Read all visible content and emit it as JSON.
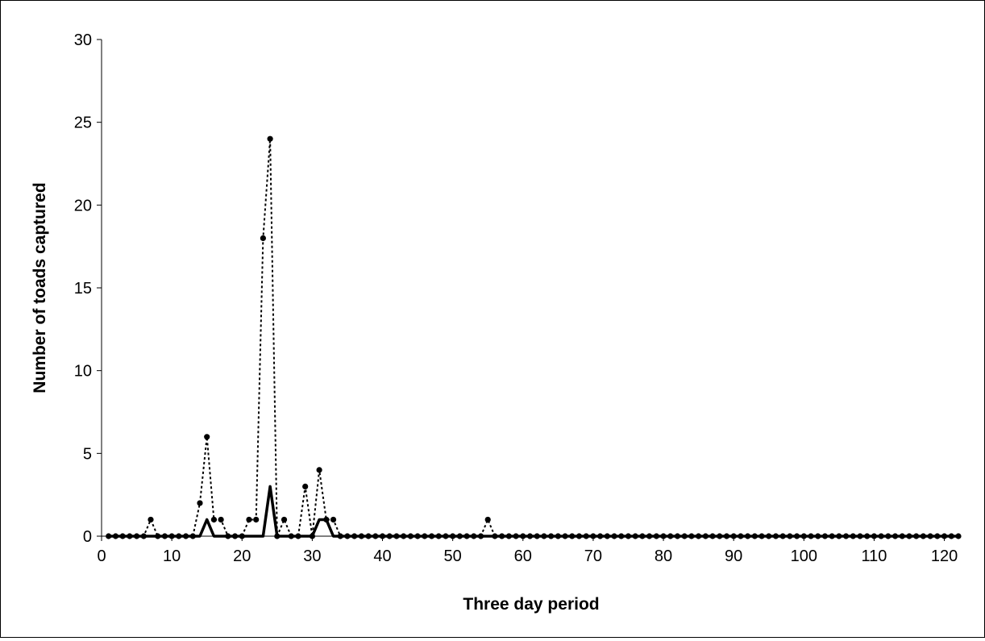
{
  "chart_data": {
    "type": "line",
    "title": "",
    "xlabel": "Three day period",
    "ylabel": "Number of toads captured",
    "xlim": [
      0,
      122
    ],
    "ylim": [
      0,
      30
    ],
    "xticks": [
      0,
      10,
      20,
      30,
      40,
      50,
      60,
      70,
      80,
      90,
      100,
      110,
      120
    ],
    "yticks": [
      0,
      5,
      10,
      15,
      20,
      25,
      30
    ],
    "grid": false,
    "legend": "none",
    "x": [
      1,
      2,
      3,
      4,
      5,
      6,
      7,
      8,
      9,
      10,
      11,
      12,
      13,
      14,
      15,
      16,
      17,
      18,
      19,
      20,
      21,
      22,
      23,
      24,
      25,
      26,
      27,
      28,
      29,
      30,
      31,
      32,
      33,
      34,
      35,
      36,
      37,
      38,
      39,
      40,
      41,
      42,
      43,
      44,
      45,
      46,
      47,
      48,
      49,
      50,
      51,
      52,
      53,
      54,
      55,
      56,
      57,
      58,
      59,
      60,
      61,
      62,
      63,
      64,
      65,
      66,
      67,
      68,
      69,
      70,
      71,
      72,
      73,
      74,
      75,
      76,
      77,
      78,
      79,
      80,
      81,
      82,
      83,
      84,
      85,
      86,
      87,
      88,
      89,
      90,
      91,
      92,
      93,
      94,
      95,
      96,
      97,
      98,
      99,
      100,
      101,
      102,
      103,
      104,
      105,
      106,
      107,
      108,
      109,
      110,
      111,
      112,
      113,
      114,
      115,
      116,
      117,
      118,
      119,
      120,
      121,
      122
    ],
    "series": [
      {
        "style": "dotted-with-markers",
        "color": "#000000",
        "values": [
          0,
          0,
          0,
          0,
          0,
          0,
          1,
          0,
          0,
          0,
          0,
          0,
          0,
          2,
          6,
          1,
          1,
          0,
          0,
          0,
          1,
          1,
          18,
          24,
          0,
          1,
          0,
          0,
          3,
          0,
          4,
          1,
          1,
          0,
          0,
          0,
          0,
          0,
          0,
          0,
          0,
          0,
          0,
          0,
          0,
          0,
          0,
          0,
          0,
          0,
          0,
          0,
          0,
          0,
          1,
          0,
          0,
          0,
          0,
          0,
          0,
          0,
          0,
          0,
          0,
          0,
          0,
          0,
          0,
          0,
          0,
          0,
          0,
          0,
          0,
          0,
          0,
          0,
          0,
          0,
          0,
          0,
          0,
          0,
          0,
          0,
          0,
          0,
          0,
          0,
          0,
          0,
          0,
          0,
          0,
          0,
          0,
          0,
          0,
          0,
          0,
          0,
          0,
          0,
          0,
          0,
          0,
          0,
          0,
          0,
          0,
          0,
          0,
          0,
          0,
          0,
          0,
          0,
          0,
          0,
          0,
          0
        ]
      },
      {
        "style": "solid-thick",
        "color": "#000000",
        "values": [
          0,
          0,
          0,
          0,
          0,
          0,
          0,
          0,
          0,
          0,
          0,
          0,
          0,
          0,
          1,
          0,
          0,
          0,
          0,
          0,
          0,
          0,
          0,
          3,
          0,
          0,
          0,
          0,
          0,
          0,
          1,
          1,
          0,
          0,
          0,
          0,
          0,
          0,
          0,
          0,
          0,
          0,
          0,
          0,
          0,
          0,
          0,
          0,
          0,
          0,
          0,
          0,
          0,
          0,
          0,
          0,
          0,
          0,
          0,
          0,
          0,
          0,
          0,
          0,
          0,
          0,
          0,
          0,
          0,
          0,
          0,
          0,
          0,
          0,
          0,
          0,
          0,
          0,
          0,
          0,
          0,
          0,
          0,
          0,
          0,
          0,
          0,
          0,
          0,
          0,
          0,
          0,
          0,
          0,
          0,
          0,
          0,
          0,
          0,
          0,
          0,
          0,
          0,
          0,
          0,
          0,
          0,
          0,
          0,
          0,
          0,
          0,
          0,
          0,
          0,
          0,
          0,
          0,
          0,
          0,
          0,
          0
        ]
      }
    ]
  }
}
